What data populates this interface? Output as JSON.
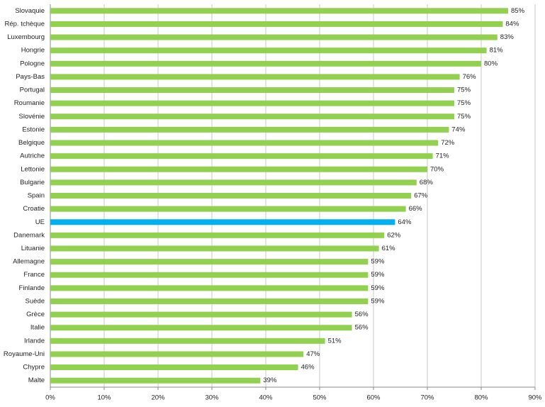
{
  "chart_data": {
    "type": "hbar",
    "categories": [
      "Slovaquie",
      "Rép. tchèque",
      "Luxembourg",
      "Hongrie",
      "Pologne",
      "Pays-Bas",
      "Portugal",
      "Roumanie",
      "Slovénie",
      "Estonie",
      "Belgique",
      "Autriche",
      "Lettonie",
      "Bulgarie",
      "Spain",
      "Croatie",
      "UE",
      "Danemark",
      "Lituanie",
      "Allemagne",
      "France",
      "Finlande",
      "Suède",
      "Grèce",
      "Italie",
      "Irlande",
      "Royaume-Uni",
      "Chypre",
      "Malte"
    ],
    "values": [
      85,
      84,
      83,
      81,
      80,
      76,
      75,
      75,
      75,
      74,
      72,
      71,
      70,
      68,
      67,
      66,
      64,
      62,
      61,
      59,
      59,
      59,
      59,
      56,
      56,
      51,
      47,
      46,
      39
    ],
    "value_labels": [
      "85%",
      "84%",
      "83%",
      "81%",
      "80%",
      "76%",
      "75%",
      "75%",
      "75%",
      "74%",
      "72%",
      "71%",
      "70%",
      "68%",
      "67%",
      "66%",
      "64%",
      "62%",
      "61%",
      "59%",
      "59%",
      "59%",
      "59%",
      "56%",
      "56%",
      "51%",
      "47%",
      "46%",
      "39%"
    ],
    "colors": [
      "#92d050",
      "#92d050",
      "#92d050",
      "#92d050",
      "#92d050",
      "#92d050",
      "#92d050",
      "#92d050",
      "#92d050",
      "#92d050",
      "#92d050",
      "#92d050",
      "#92d050",
      "#92d050",
      "#92d050",
      "#92d050",
      "#00b0f0",
      "#92d050",
      "#92d050",
      "#92d050",
      "#92d050",
      "#92d050",
      "#92d050",
      "#92d050",
      "#92d050",
      "#92d050",
      "#92d050",
      "#92d050",
      "#92d050"
    ],
    "xlim": [
      0,
      90
    ],
    "xticks": [
      {
        "value": 0,
        "label": "0%"
      },
      {
        "value": 10,
        "label": "10%"
      },
      {
        "value": 20,
        "label": "20%"
      },
      {
        "value": 30,
        "label": "30%"
      },
      {
        "value": 40,
        "label": "40%"
      },
      {
        "value": 50,
        "label": "50%"
      },
      {
        "value": 60,
        "label": "60%"
      },
      {
        "value": 70,
        "label": "70%"
      },
      {
        "value": 80,
        "label": "80%"
      },
      {
        "value": 90,
        "label": "90%"
      }
    ],
    "grid": true
  }
}
